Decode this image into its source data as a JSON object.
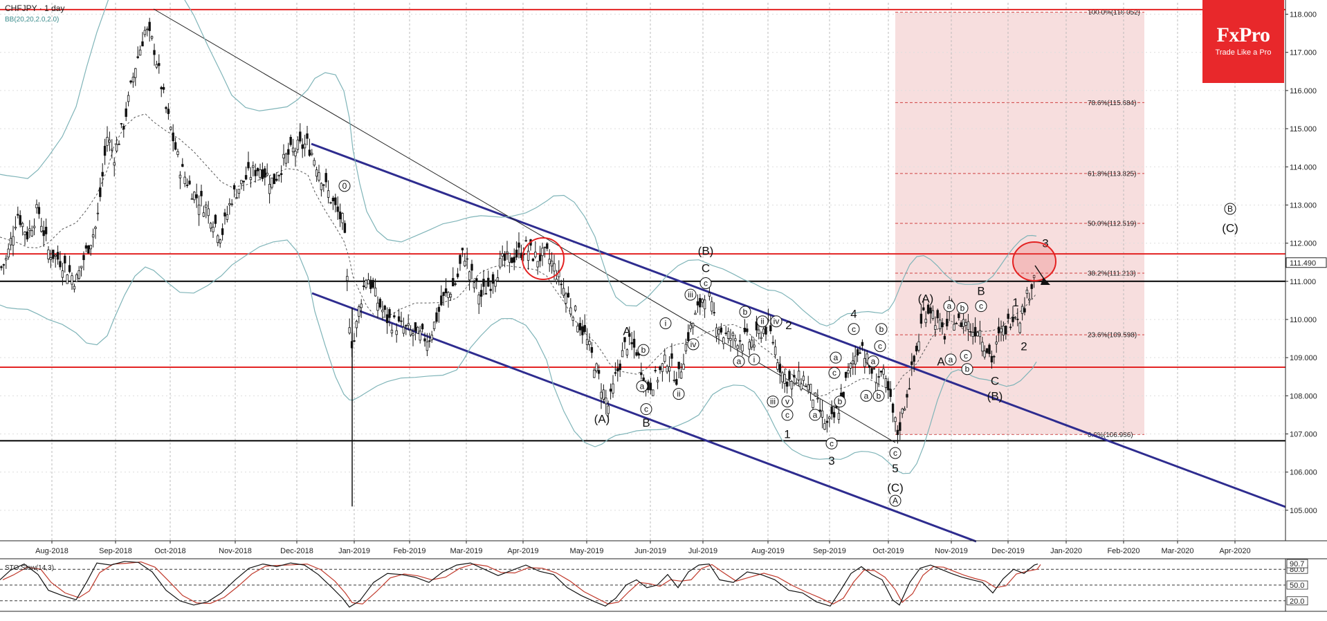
{
  "chart_data": {
    "type": "candlestick",
    "title": "CHFJPY · 1 day",
    "indicator_label": "BB(20,20,2.0,2.0)",
    "brand": {
      "name": "FxPro",
      "tagline": "Trade Like a Pro",
      "color": "#e8282b"
    },
    "ylim": [
      104.2,
      118.3
    ],
    "yticks": [
      105.0,
      106.0,
      107.0,
      108.0,
      109.0,
      110.0,
      111.0,
      112.0,
      113.0,
      114.0,
      115.0,
      116.0,
      117.0,
      118.0
    ],
    "ytick_labels": [
      "105.000",
      "106.000",
      "107.000",
      "108.000",
      "109.000",
      "110.000",
      "111.000",
      "112.000",
      "113.000",
      "114.000",
      "115.000",
      "116.000",
      "117.000",
      "118.000"
    ],
    "current_price": 111.49,
    "current_price_label": "111.490",
    "x_months": [
      "Aug-2018",
      "Sep-2018",
      "Oct-2018",
      "Nov-2018",
      "Dec-2018",
      "Jan-2019",
      "Feb-2019",
      "Mar-2019",
      "Apr-2019",
      "May-2019",
      "Jun-2019",
      "Jul-2019",
      "Aug-2019",
      "Sep-2019",
      "Oct-2019",
      "Nov-2019",
      "Dec-2019",
      "Jan-2020",
      "Feb-2020",
      "Mar-2020",
      "Apr-2020"
    ],
    "horizontal_levels": [
      {
        "price": 118.12,
        "color": "#e32222"
      },
      {
        "price": 111.72,
        "color": "#e32222"
      },
      {
        "price": 111.0,
        "color": "#000000"
      },
      {
        "price": 108.75,
        "color": "#e32222"
      },
      {
        "price": 106.82,
        "color": "#000000"
      }
    ],
    "fibonacci": [
      {
        "label": "100.0%(118.052)",
        "price": 118.052
      },
      {
        "label": "78.6%(115.684)",
        "price": 115.684
      },
      {
        "label": "61.8%(113.825)",
        "price": 113.825
      },
      {
        "label": "50.0%(112.519)",
        "price": 112.519
      },
      {
        "label": "38.2%(111.213)",
        "price": 111.213
      },
      {
        "label": "23.6%(109.598)",
        "price": 109.598
      },
      {
        "label": "0.0%(106.986)",
        "price": 106.986
      }
    ],
    "price_path": [
      [
        0,
        111.3
      ],
      [
        10,
        111.6
      ],
      [
        25,
        112.8
      ],
      [
        40,
        112.2
      ],
      [
        55,
        112.9
      ],
      [
        70,
        111.8
      ],
      [
        90,
        111.5
      ],
      [
        110,
        111.0
      ],
      [
        125,
        111.8
      ],
      [
        140,
        112.5
      ],
      [
        155,
        114.8
      ],
      [
        165,
        114.3
      ],
      [
        180,
        115.2
      ],
      [
        195,
        116.6
      ],
      [
        210,
        117.6
      ],
      [
        222,
        117.2
      ],
      [
        240,
        115.5
      ],
      [
        260,
        114.0
      ],
      [
        280,
        113.3
      ],
      [
        300,
        112.9
      ],
      [
        320,
        112.2
      ],
      [
        335,
        113.2
      ],
      [
        355,
        113.7
      ],
      [
        375,
        114.0
      ],
      [
        395,
        113.6
      ],
      [
        415,
        114.3
      ],
      [
        430,
        114.5
      ],
      [
        445,
        114.6
      ],
      [
        455,
        114.2
      ],
      [
        470,
        113.5
      ],
      [
        485,
        112.9
      ],
      [
        497,
        112.5
      ],
      [
        505,
        110.0
      ],
      [
        510,
        109.2
      ],
      [
        520,
        110.4
      ],
      [
        530,
        111.2
      ],
      [
        545,
        110.5
      ],
      [
        560,
        110.0
      ],
      [
        580,
        109.8
      ],
      [
        600,
        109.6
      ],
      [
        620,
        109.5
      ],
      [
        640,
        110.5
      ],
      [
        660,
        111.0
      ],
      [
        670,
        111.8
      ],
      [
        680,
        111.2
      ],
      [
        695,
        110.6
      ],
      [
        710,
        111.0
      ],
      [
        725,
        111.5
      ],
      [
        740,
        111.6
      ],
      [
        760,
        111.9
      ],
      [
        775,
        111.6
      ],
      [
        790,
        111.7
      ],
      [
        800,
        111.4
      ],
      [
        815,
        110.8
      ],
      [
        830,
        110.2
      ],
      [
        845,
        109.6
      ],
      [
        860,
        108.8
      ],
      [
        870,
        108.2
      ],
      [
        880,
        107.7
      ],
      [
        890,
        108.5
      ],
      [
        905,
        109.4
      ],
      [
        920,
        109.2
      ],
      [
        935,
        108.2
      ],
      [
        950,
        108.5
      ],
      [
        965,
        109.0
      ],
      [
        980,
        108.4
      ],
      [
        995,
        109.6
      ],
      [
        1010,
        110.3
      ],
      [
        1020,
        110.8
      ],
      [
        1030,
        110.2
      ],
      [
        1045,
        109.6
      ],
      [
        1060,
        109.5
      ],
      [
        1075,
        109.5
      ],
      [
        1090,
        109.4
      ],
      [
        1100,
        109.7
      ],
      [
        1110,
        109.8
      ],
      [
        1120,
        109.3
      ],
      [
        1130,
        108.6
      ],
      [
        1145,
        108.3
      ],
      [
        1160,
        108.5
      ],
      [
        1175,
        108.0
      ],
      [
        1185,
        107.6
      ],
      [
        1195,
        107.2
      ],
      [
        1205,
        107.4
      ],
      [
        1215,
        107.8
      ],
      [
        1225,
        108.5
      ],
      [
        1235,
        109.0
      ],
      [
        1245,
        109.4
      ],
      [
        1255,
        108.8
      ],
      [
        1265,
        108.5
      ],
      [
        1275,
        108.6
      ],
      [
        1285,
        108.0
      ],
      [
        1292,
        107.4
      ],
      [
        1298,
        107.0
      ],
      [
        1305,
        107.6
      ],
      [
        1315,
        108.4
      ],
      [
        1325,
        109.2
      ],
      [
        1335,
        110.2
      ],
      [
        1345,
        110.3
      ],
      [
        1355,
        109.9
      ],
      [
        1365,
        109.6
      ],
      [
        1375,
        110.2
      ],
      [
        1385,
        109.9
      ],
      [
        1395,
        110.0
      ],
      [
        1405,
        109.7
      ],
      [
        1415,
        109.8
      ],
      [
        1425,
        109.3
      ],
      [
        1435,
        108.9
      ],
      [
        1445,
        109.6
      ],
      [
        1455,
        109.8
      ],
      [
        1465,
        110.2
      ],
      [
        1475,
        110.1
      ],
      [
        1485,
        110.6
      ],
      [
        1492,
        111.0
      ],
      [
        1498,
        111.5
      ]
    ],
    "wave_labels": [
      {
        "text": "0",
        "circled": true,
        "x": 498,
        "y": 113.5
      },
      {
        "text": "(B)",
        "circled": false,
        "x": 1020,
        "y": 111.8
      },
      {
        "text": "C",
        "circled": false,
        "x": 1020,
        "y": 111.35
      },
      {
        "text": "c",
        "circled": true,
        "x": 1020,
        "y": 110.95
      },
      {
        "text": "A",
        "circled": false,
        "x": 906,
        "y": 109.7
      },
      {
        "text": "b",
        "circled": true,
        "x": 930,
        "y": 109.2
      },
      {
        "text": "a",
        "circled": true,
        "x": 928,
        "y": 108.25
      },
      {
        "text": "c",
        "circled": true,
        "x": 934,
        "y": 107.65
      },
      {
        "text": "B",
        "circled": false,
        "x": 934,
        "y": 107.3
      },
      {
        "text": "(A)",
        "circled": false,
        "x": 870,
        "y": 107.4
      },
      {
        "text": "i",
        "circled": true,
        "x": 962,
        "y": 109.9
      },
      {
        "text": "iii",
        "circled": true,
        "x": 998,
        "y": 110.65
      },
      {
        "text": "iv",
        "circled": true,
        "x": 1002,
        "y": 109.35
      },
      {
        "text": "ii",
        "circled": true,
        "x": 981,
        "y": 108.05
      },
      {
        "text": "b",
        "circled": true,
        "x": 1077,
        "y": 110.2
      },
      {
        "text": "ii",
        "circled": true,
        "x": 1102,
        "y": 109.95
      },
      {
        "text": "iv",
        "circled": true,
        "x": 1122,
        "y": 109.95
      },
      {
        "text": "2",
        "circled": false,
        "x": 1140,
        "y": 109.85
      },
      {
        "text": "a",
        "circled": true,
        "x": 1068,
        "y": 108.9
      },
      {
        "text": "i",
        "circled": true,
        "x": 1090,
        "y": 108.95
      },
      {
        "text": "iii",
        "circled": true,
        "x": 1117,
        "y": 107.85
      },
      {
        "text": "v",
        "circled": true,
        "x": 1138,
        "y": 107.85
      },
      {
        "text": "c",
        "circled": true,
        "x": 1138,
        "y": 107.5
      },
      {
        "text": "1",
        "circled": false,
        "x": 1138,
        "y": 107.0
      },
      {
        "text": "4",
        "circled": false,
        "x": 1234,
        "y": 110.15
      },
      {
        "text": "c",
        "circled": true,
        "x": 1234,
        "y": 109.75
      },
      {
        "text": "a",
        "circled": true,
        "x": 1208,
        "y": 109.0
      },
      {
        "text": "c",
        "circled": true,
        "x": 1206,
        "y": 108.6
      },
      {
        "text": "b",
        "circled": true,
        "x": 1214,
        "y": 107.85
      },
      {
        "text": "a",
        "circled": true,
        "x": 1178,
        "y": 107.5
      },
      {
        "text": "c",
        "circled": true,
        "x": 1202,
        "y": 106.75
      },
      {
        "text": "3",
        "circled": false,
        "x": 1202,
        "y": 106.3
      },
      {
        "text": "b",
        "circled": true,
        "x": 1274,
        "y": 109.75
      },
      {
        "text": "c",
        "circled": true,
        "x": 1272,
        "y": 109.3
      },
      {
        "text": "a",
        "circled": true,
        "x": 1262,
        "y": 108.9
      },
      {
        "text": "a",
        "circled": true,
        "x": 1252,
        "y": 108.0
      },
      {
        "text": "b",
        "circled": true,
        "x": 1270,
        "y": 108.0
      },
      {
        "text": "c",
        "circled": true,
        "x": 1294,
        "y": 106.5
      },
      {
        "text": "5",
        "circled": false,
        "x": 1294,
        "y": 106.1
      },
      {
        "text": "(C)",
        "circled": false,
        "x": 1294,
        "y": 105.6
      },
      {
        "text": "A",
        "circled": true,
        "x": 1294,
        "y": 105.25
      },
      {
        "text": "(A)",
        "circled": false,
        "x": 1338,
        "y": 110.55
      },
      {
        "text": "a",
        "circled": true,
        "x": 1372,
        "y": 110.35
      },
      {
        "text": "b",
        "circled": true,
        "x": 1391,
        "y": 110.3
      },
      {
        "text": "B",
        "circled": false,
        "x": 1418,
        "y": 110.75
      },
      {
        "text": "c",
        "circled": true,
        "x": 1418,
        "y": 110.35
      },
      {
        "text": "A",
        "circled": false,
        "x": 1360,
        "y": 108.9
      },
      {
        "text": "a",
        "circled": true,
        "x": 1374,
        "y": 108.95
      },
      {
        "text": "c",
        "circled": true,
        "x": 1396,
        "y": 109.05
      },
      {
        "text": "b",
        "circled": true,
        "x": 1398,
        "y": 108.7
      },
      {
        "text": "C",
        "circled": false,
        "x": 1438,
        "y": 108.4
      },
      {
        "text": "(B)",
        "circled": false,
        "x": 1438,
        "y": 108.0
      },
      {
        "text": "1",
        "circled": false,
        "x": 1468,
        "y": 110.45
      },
      {
        "text": "2",
        "circled": false,
        "x": 1480,
        "y": 109.3
      },
      {
        "text": "3",
        "circled": false,
        "x": 1511,
        "y": 112.0
      },
      {
        "text": "B",
        "circled": true,
        "x": 1778,
        "y": 112.9
      },
      {
        "text": "(C)",
        "circled": false,
        "x": 1778,
        "y": 112.4
      }
    ],
    "stochastic": {
      "label": "STO Slow(14,3)",
      "levels": [
        20.0,
        50.0,
        80.0
      ],
      "level_labels": [
        "20.0",
        "50.0",
        "80.0"
      ],
      "current_value": 90.7,
      "current_label": "90.7",
      "k_series": [
        [
          0,
          60
        ],
        [
          15,
          78
        ],
        [
          35,
          90
        ],
        [
          55,
          70
        ],
        [
          70,
          40
        ],
        [
          90,
          30
        ],
        [
          110,
          22
        ],
        [
          125,
          55
        ],
        [
          140,
          92
        ],
        [
          160,
          88
        ],
        [
          180,
          95
        ],
        [
          200,
          93
        ],
        [
          220,
          75
        ],
        [
          240,
          40
        ],
        [
          260,
          20
        ],
        [
          280,
          12
        ],
        [
          300,
          18
        ],
        [
          320,
          35
        ],
        [
          340,
          60
        ],
        [
          360,
          82
        ],
        [
          380,
          90
        ],
        [
          400,
          85
        ],
        [
          420,
          92
        ],
        [
          440,
          88
        ],
        [
          460,
          70
        ],
        [
          480,
          45
        ],
        [
          495,
          25
        ],
        [
          505,
          8
        ],
        [
          520,
          20
        ],
        [
          540,
          55
        ],
        [
          560,
          72
        ],
        [
          580,
          70
        ],
        [
          600,
          65
        ],
        [
          620,
          55
        ],
        [
          640,
          75
        ],
        [
          660,
          88
        ],
        [
          680,
          92
        ],
        [
          700,
          80
        ],
        [
          720,
          68
        ],
        [
          740,
          78
        ],
        [
          760,
          88
        ],
        [
          780,
          76
        ],
        [
          800,
          70
        ],
        [
          820,
          45
        ],
        [
          840,
          30
        ],
        [
          860,
          18
        ],
        [
          875,
          10
        ],
        [
          890,
          25
        ],
        [
          905,
          50
        ],
        [
          920,
          60
        ],
        [
          935,
          45
        ],
        [
          950,
          50
        ],
        [
          965,
          70
        ],
        [
          980,
          45
        ],
        [
          995,
          75
        ],
        [
          1010,
          88
        ],
        [
          1025,
          90
        ],
        [
          1040,
          60
        ],
        [
          1060,
          55
        ],
        [
          1080,
          75
        ],
        [
          1100,
          70
        ],
        [
          1120,
          60
        ],
        [
          1140,
          40
        ],
        [
          1160,
          35
        ],
        [
          1180,
          18
        ],
        [
          1200,
          10
        ],
        [
          1215,
          40
        ],
        [
          1230,
          72
        ],
        [
          1245,
          85
        ],
        [
          1260,
          70
        ],
        [
          1275,
          60
        ],
        [
          1290,
          22
        ],
        [
          1300,
          12
        ],
        [
          1315,
          55
        ],
        [
          1330,
          82
        ],
        [
          1345,
          88
        ],
        [
          1360,
          80
        ],
        [
          1375,
          72
        ],
        [
          1390,
          65
        ],
        [
          1405,
          60
        ],
        [
          1420,
          55
        ],
        [
          1435,
          35
        ],
        [
          1450,
          62
        ],
        [
          1465,
          80
        ],
        [
          1480,
          72
        ],
        [
          1495,
          88
        ],
        [
          1500,
          90
        ]
      ]
    }
  }
}
